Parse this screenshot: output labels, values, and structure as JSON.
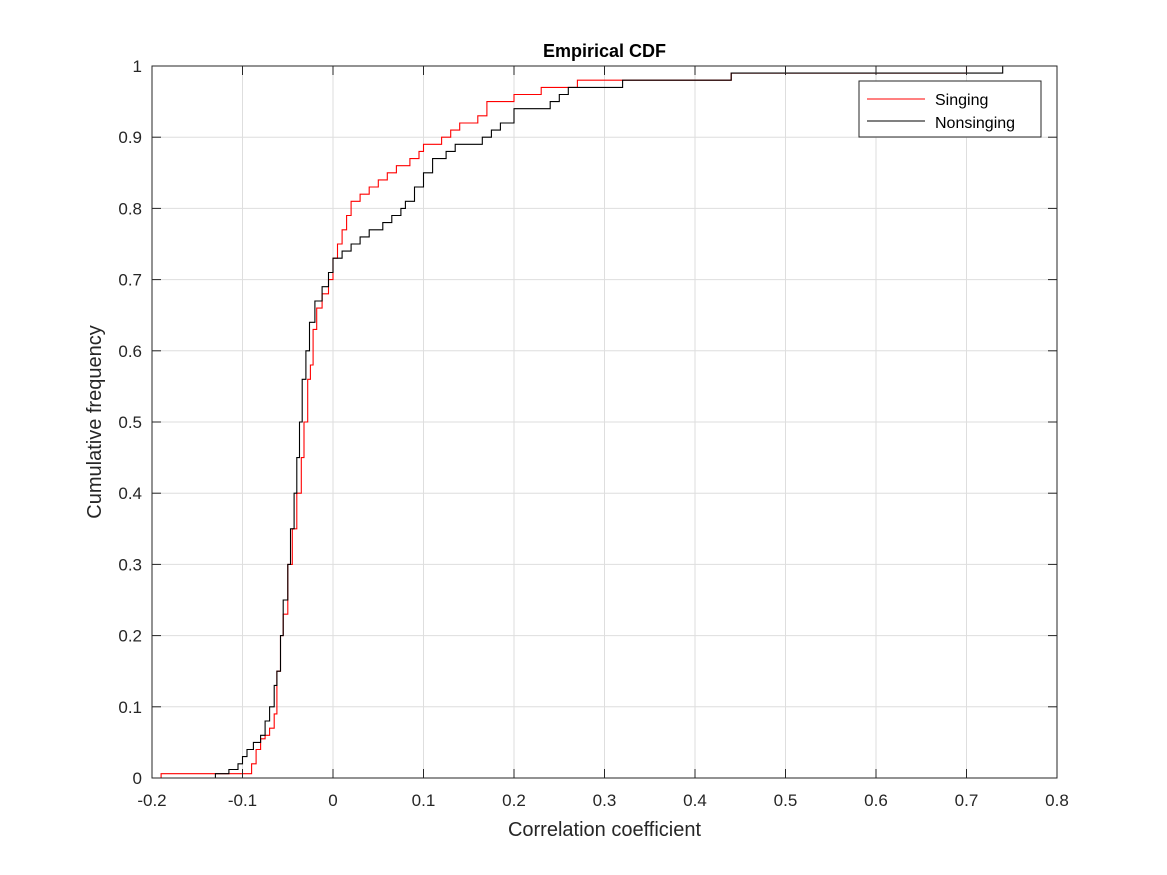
{
  "chart_data": {
    "type": "line",
    "title": "Empirical CDF",
    "xlabel": "Correlation coefficient",
    "ylabel": "Cumulative frequency",
    "xlim": [
      -0.2,
      0.8
    ],
    "ylim": [
      0,
      1
    ],
    "xticks": [
      -0.2,
      -0.1,
      0,
      0.1,
      0.2,
      0.3,
      0.4,
      0.5,
      0.6,
      0.7,
      0.8
    ],
    "xtick_labels": [
      "-0.2",
      "-0.1",
      "0",
      "0.1",
      "0.2",
      "0.3",
      "0.4",
      "0.5",
      "0.6",
      "0.7",
      "0.8"
    ],
    "yticks": [
      0,
      0.1,
      0.2,
      0.3,
      0.4,
      0.5,
      0.6,
      0.7,
      0.8,
      0.9,
      1
    ],
    "ytick_labels": [
      "0",
      "0.1",
      "0.2",
      "0.3",
      "0.4",
      "0.5",
      "0.6",
      "0.7",
      "0.8",
      "0.9",
      "1"
    ],
    "grid": true,
    "legend_position": "top-right",
    "series": [
      {
        "name": "Singing",
        "color": "#ff0000",
        "step": true,
        "points": [
          [
            -0.19,
            0
          ],
          [
            -0.19,
            0.006
          ],
          [
            -0.095,
            0.006
          ],
          [
            -0.09,
            0.02
          ],
          [
            -0.085,
            0.04
          ],
          [
            -0.08,
            0.055
          ],
          [
            -0.075,
            0.06
          ],
          [
            -0.07,
            0.07
          ],
          [
            -0.065,
            0.09
          ],
          [
            -0.062,
            0.15
          ],
          [
            -0.058,
            0.2
          ],
          [
            -0.055,
            0.23
          ],
          [
            -0.05,
            0.3
          ],
          [
            -0.045,
            0.35
          ],
          [
            -0.04,
            0.4
          ],
          [
            -0.035,
            0.45
          ],
          [
            -0.032,
            0.5
          ],
          [
            -0.028,
            0.56
          ],
          [
            -0.025,
            0.58
          ],
          [
            -0.022,
            0.63
          ],
          [
            -0.018,
            0.66
          ],
          [
            -0.012,
            0.68
          ],
          [
            -0.005,
            0.7
          ],
          [
            0,
            0.73
          ],
          [
            0.005,
            0.75
          ],
          [
            0.01,
            0.77
          ],
          [
            0.015,
            0.79
          ],
          [
            0.02,
            0.81
          ],
          [
            0.03,
            0.82
          ],
          [
            0.04,
            0.83
          ],
          [
            0.05,
            0.84
          ],
          [
            0.06,
            0.85
          ],
          [
            0.07,
            0.86
          ],
          [
            0.085,
            0.87
          ],
          [
            0.095,
            0.88
          ],
          [
            0.1,
            0.89
          ],
          [
            0.12,
            0.9
          ],
          [
            0.13,
            0.91
          ],
          [
            0.14,
            0.92
          ],
          [
            0.16,
            0.93
          ],
          [
            0.17,
            0.95
          ],
          [
            0.2,
            0.96
          ],
          [
            0.23,
            0.97
          ],
          [
            0.27,
            0.98
          ],
          [
            0.44,
            0.99
          ],
          [
            0.7,
            1.0
          ],
          [
            0.74,
            1.0
          ]
        ]
      },
      {
        "name": "Nonsinging",
        "color": "#000000",
        "step": true,
        "points": [
          [
            -0.13,
            0
          ],
          [
            -0.13,
            0.006
          ],
          [
            -0.115,
            0.012
          ],
          [
            -0.105,
            0.02
          ],
          [
            -0.1,
            0.03
          ],
          [
            -0.095,
            0.04
          ],
          [
            -0.088,
            0.05
          ],
          [
            -0.08,
            0.06
          ],
          [
            -0.075,
            0.08
          ],
          [
            -0.07,
            0.1
          ],
          [
            -0.065,
            0.13
          ],
          [
            -0.062,
            0.15
          ],
          [
            -0.058,
            0.2
          ],
          [
            -0.055,
            0.25
          ],
          [
            -0.05,
            0.3
          ],
          [
            -0.047,
            0.35
          ],
          [
            -0.043,
            0.4
          ],
          [
            -0.04,
            0.45
          ],
          [
            -0.037,
            0.5
          ],
          [
            -0.034,
            0.56
          ],
          [
            -0.03,
            0.6
          ],
          [
            -0.026,
            0.64
          ],
          [
            -0.02,
            0.67
          ],
          [
            -0.012,
            0.69
          ],
          [
            -0.005,
            0.71
          ],
          [
            0,
            0.73
          ],
          [
            0.01,
            0.74
          ],
          [
            0.02,
            0.75
          ],
          [
            0.03,
            0.76
          ],
          [
            0.04,
            0.77
          ],
          [
            0.055,
            0.78
          ],
          [
            0.065,
            0.79
          ],
          [
            0.075,
            0.8
          ],
          [
            0.08,
            0.81
          ],
          [
            0.09,
            0.83
          ],
          [
            0.1,
            0.85
          ],
          [
            0.11,
            0.87
          ],
          [
            0.125,
            0.88
          ],
          [
            0.135,
            0.89
          ],
          [
            0.165,
            0.9
          ],
          [
            0.175,
            0.91
          ],
          [
            0.185,
            0.92
          ],
          [
            0.2,
            0.94
          ],
          [
            0.24,
            0.95
          ],
          [
            0.25,
            0.96
          ],
          [
            0.26,
            0.97
          ],
          [
            0.32,
            0.98
          ],
          [
            0.44,
            0.99
          ],
          [
            0.74,
            0.99
          ],
          [
            0.74,
            1.0
          ]
        ]
      }
    ]
  }
}
